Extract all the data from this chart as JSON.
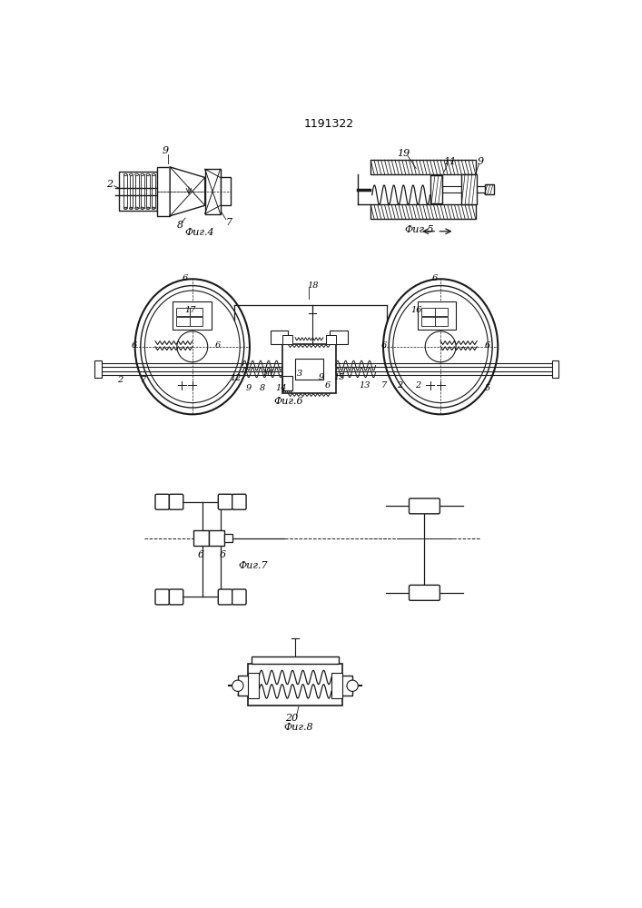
{
  "title": "1191322",
  "bg_color": "#ffffff",
  "line_color": "#1a1a1a",
  "fig_labels": {
    "fig4": "Фиг.4",
    "fig5": "Фиг.5",
    "fig6": "Фиг.6",
    "fig7": "Фиг.7",
    "fig8": "Фиг.8"
  }
}
